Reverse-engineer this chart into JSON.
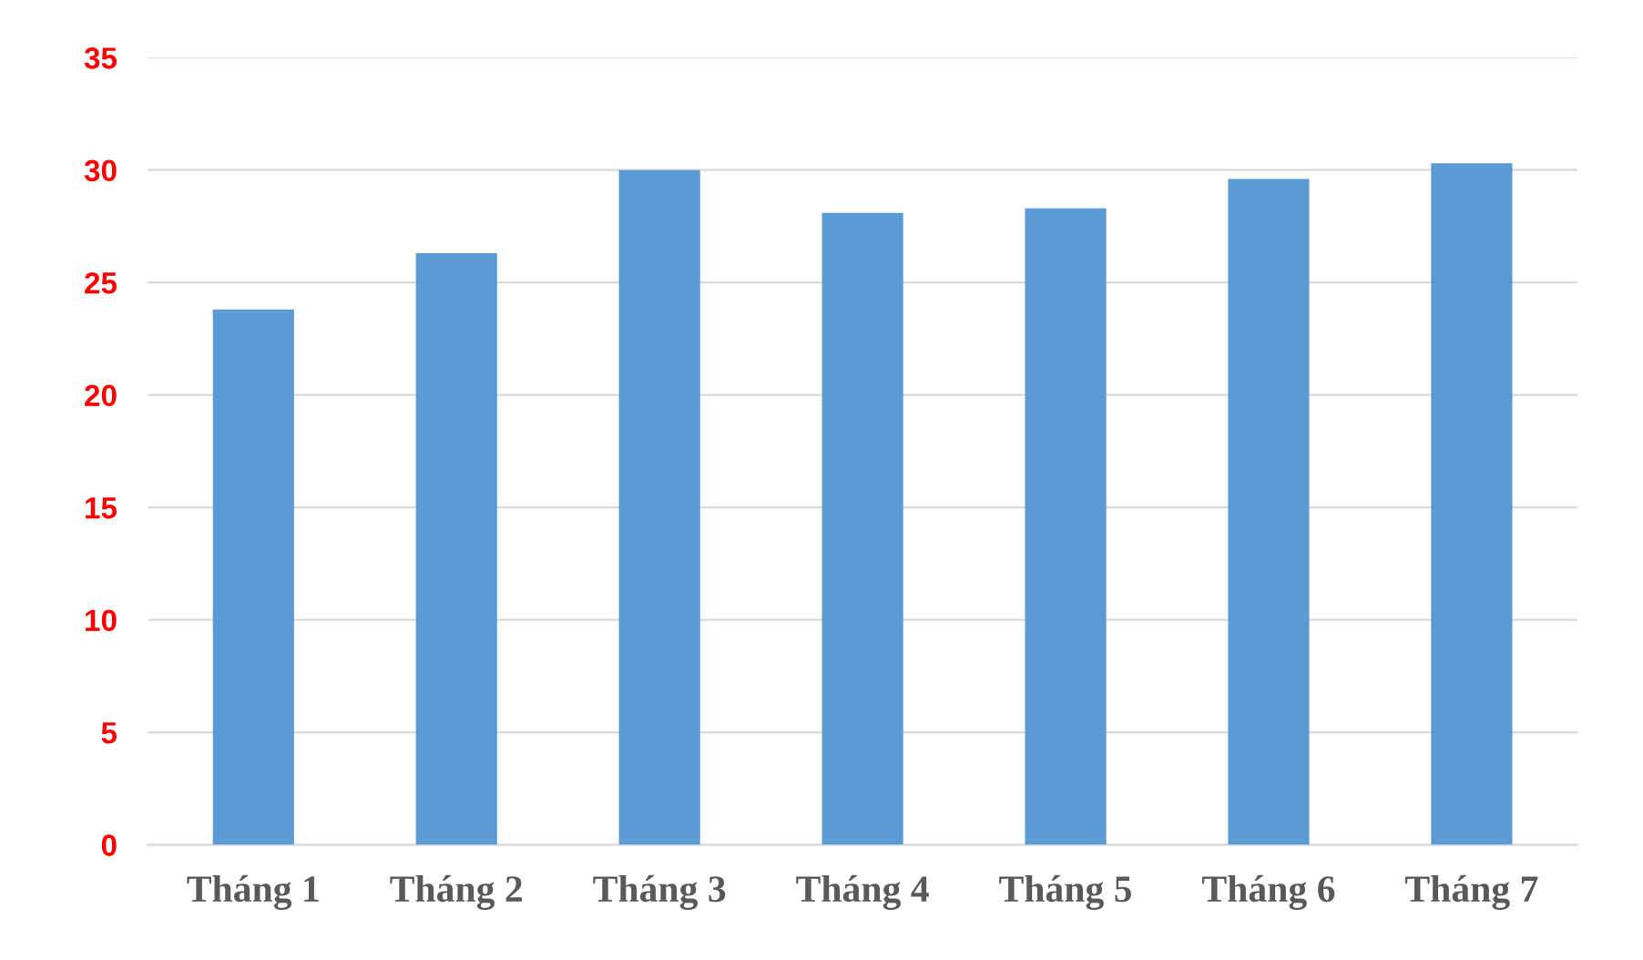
{
  "chart_data": {
    "type": "bar",
    "categories": [
      "Tháng 1",
      "Tháng 2",
      "Tháng 3",
      "Tháng 4",
      "Tháng 5",
      "Tháng 6",
      "Tháng 7"
    ],
    "values": [
      23.8,
      26.3,
      30.0,
      28.1,
      28.3,
      29.6,
      30.3
    ],
    "color": "#5b9bd5",
    "ylim": [
      0,
      35
    ],
    "yticks": [
      0,
      5,
      10,
      15,
      20,
      25,
      30,
      35
    ],
    "grid": "y"
  }
}
